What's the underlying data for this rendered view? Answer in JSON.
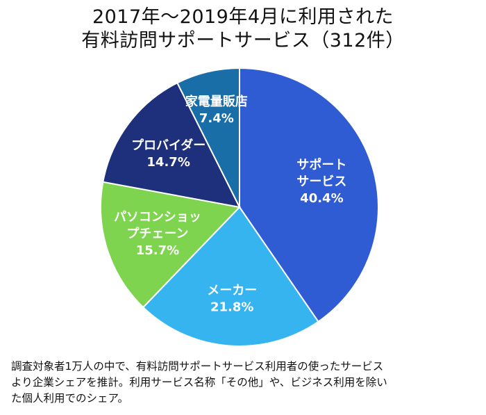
{
  "title": {
    "line1": "2017年〜2019年4月に利用された",
    "line2": "有料訪問サポートサービス（312件）"
  },
  "chart_data": {
    "type": "pie",
    "title": "2017年〜2019年4月に利用された有料訪問サポートサービス（312件）",
    "slices": [
      {
        "label": [
          "サポート",
          "サービス"
        ],
        "value": 40.4,
        "value_label": "40.4%",
        "color": "#2f5bd3"
      },
      {
        "label": [
          "メーカー"
        ],
        "value": 21.8,
        "value_label": "21.8%",
        "color": "#36b4ef"
      },
      {
        "label": [
          "パソコンショッ",
          "プチェーン"
        ],
        "value": 15.7,
        "value_label": "15.7%",
        "color": "#7ed34f"
      },
      {
        "label": [
          "プロバイダー"
        ],
        "value": 14.7,
        "value_label": "14.7%",
        "color": "#1e2f7c"
      },
      {
        "label": [
          "家電量販店"
        ],
        "value": 7.4,
        "value_label": "7.4%",
        "color": "#1a6ea7"
      }
    ],
    "start": "12 o'clock",
    "direction": "clockwise"
  },
  "notes": {
    "line1": "調査対象者1万人の中で、有料訪問サポートサービス利用者の使ったサービス",
    "line2": "より企業シェアを推計。利用サービス名称「その他」や、ビジネス利用を除い",
    "line3": "た個人利用でのシェア。"
  }
}
